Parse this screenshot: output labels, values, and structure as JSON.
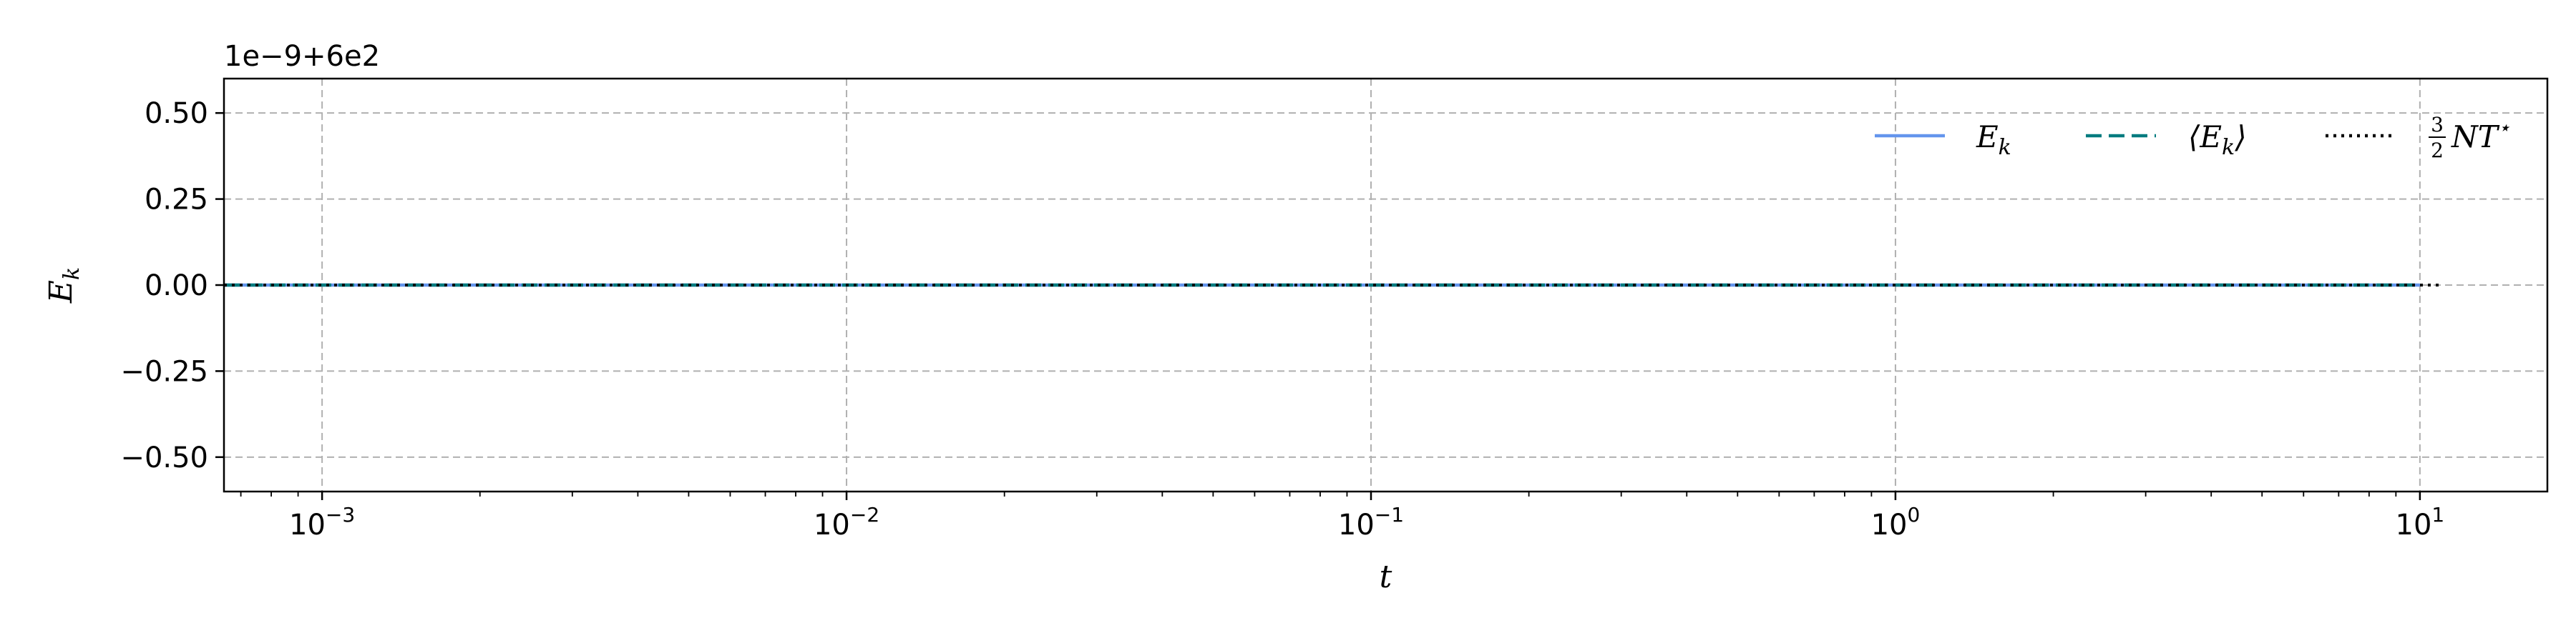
{
  "chart_data": {
    "type": "line",
    "xscale": "log",
    "x_range": [
      0.00065,
      17.5
    ],
    "ylim": [
      -0.6,
      0.6
    ],
    "y_offset_label": "1e−9+6e2",
    "xlabel": "t",
    "ylabel": "E_k",
    "x_tick_labels": [
      {
        "value": 0.001,
        "base": "10",
        "exp": "−3"
      },
      {
        "value": 0.01,
        "base": "10",
        "exp": "−2"
      },
      {
        "value": 0.1,
        "base": "10",
        "exp": "−1"
      },
      {
        "value": 1,
        "base": "10",
        "exp": "0"
      },
      {
        "value": 10,
        "base": "10",
        "exp": "1"
      }
    ],
    "y_ticks": [
      0.5,
      0.25,
      0.0,
      -0.25,
      -0.5
    ],
    "y_tick_labels": [
      "0.50",
      "0.25",
      "0.00",
      "−0.25",
      "−0.50"
    ],
    "grid": true,
    "legend_position": "top-right",
    "series": [
      {
        "name": "E_k",
        "legend_main": "E",
        "legend_sub": "k",
        "style": "solid",
        "color": "#6495ED",
        "x_range": [
          0.00065,
          10
        ],
        "value": 0.0
      },
      {
        "name": "⟨E_k⟩",
        "legend_main": "⟨E",
        "legend_sub": "k",
        "legend_tail": "⟩",
        "style": "dashed",
        "color": "#007B7F",
        "x_range": [
          0.00065,
          10
        ],
        "value": 0.0
      },
      {
        "name": "3/2 N T*",
        "legend_num": "3",
        "legend_den": "2",
        "legend_main": "NT",
        "legend_sup": "⋆",
        "style": "dotted",
        "color": "#000000",
        "x_range": [
          0.00065,
          11
        ],
        "value": 0.0
      }
    ]
  }
}
